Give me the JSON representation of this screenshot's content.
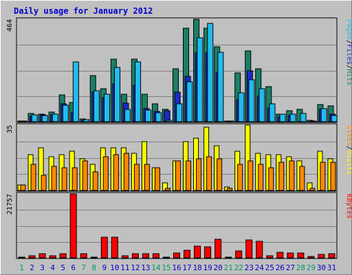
{
  "chart_data": {
    "type": "bar",
    "title": "Daily usage for January 2012",
    "categories": [
      "1",
      "2",
      "3",
      "4",
      "5",
      "6",
      "7",
      "8",
      "9",
      "10",
      "11",
      "12",
      "13",
      "14",
      "15",
      "16",
      "17",
      "18",
      "19",
      "20",
      "21",
      "22",
      "23",
      "24",
      "25",
      "26",
      "27",
      "28",
      "29",
      "30",
      "31"
    ],
    "weekend_days": [
      "1",
      "7",
      "8",
      "14",
      "15",
      "21",
      "22",
      "28",
      "29"
    ],
    "panels": [
      {
        "id": "hits-files-pages",
        "ymax_label": "464",
        "ymax": 464,
        "legend": [
          "Pages",
          "/",
          "Files",
          "/",
          "Hits"
        ],
        "series": [
          {
            "name": "Hits",
            "color": "#1a7f66",
            "values": [
              4,
              37,
              35,
              44,
              120,
              88,
              14,
              210,
              150,
              284,
              125,
              283,
              126,
              81,
              57,
              240,
              423,
              464,
              425,
              340,
              4,
              220,
              320,
              240,
              159,
              35,
              49,
              57,
              5,
              77,
              73
            ]
          },
          {
            "name": "Files",
            "color": "#1a2acc",
            "values": [
              3,
              25,
              30,
              30,
              80,
              40,
              5,
              135,
              110,
              170,
              84,
              165,
              59,
              47,
              49,
              135,
              206,
              310,
              310,
              220,
              2,
              100,
              230,
              115,
              62,
              22,
              27,
              0,
              0,
              55,
              33
            ]
          },
          {
            "name": "Pages",
            "color": "#22bbee",
            "values": [
              2,
              30,
              28,
              35,
              75,
              270,
              10,
              140,
              125,
              245,
              55,
              270,
              53,
              40,
              6,
              80,
              180,
              380,
              445,
              315,
              3,
              130,
              190,
              150,
              80,
              35,
              35,
              38,
              2,
              60,
              27
            ]
          }
        ]
      },
      {
        "id": "visits-sites",
        "ymax_label": "35",
        "ymax": 35,
        "legend": [
          "Sites",
          "/",
          "Visits"
        ],
        "series": [
          {
            "name": "Visits",
            "color": "#ffff00",
            "values": [
              3,
              19,
              23,
              18,
              19,
              21,
              17,
              14,
              23,
              23,
              23,
              20,
              26,
              12,
              4,
              16,
              26,
              28,
              34,
              24,
              2,
              21,
              35,
              20,
              19,
              19,
              18,
              16,
              4,
              21,
              17
            ]
          },
          {
            "name": "Sites",
            "color": "#ff8800",
            "values": [
              3,
              14,
              8,
              13,
              12,
              12,
              16,
              10,
              18,
              19,
              20,
              14,
              14,
              12,
              1,
              16,
              16,
              17,
              18,
              17,
              1,
              14,
              16,
              14,
              12,
              15,
              16,
              13,
              1,
              15,
              15
            ]
          }
        ]
      },
      {
        "id": "kbytes",
        "ymax_label": "21757",
        "ymax": 21757,
        "legend": [
          "KBytes"
        ],
        "series": [
          {
            "name": "KBytes",
            "color": "#ff0000",
            "values": [
              300,
              600,
              1300,
              700,
              1500,
              21757,
              1300,
              150,
              7000,
              7000,
              600,
              1500,
              1500,
              1500,
              200,
              1600,
              2500,
              4000,
              3800,
              6200,
              300,
              2300,
              6000,
              5700,
              800,
              1900,
              1700,
              1700,
              400,
              1100,
              1300
            ]
          }
        ]
      }
    ]
  },
  "colors": {
    "background": "#c0c0c0",
    "title": "#0000cc",
    "axis_label": "#000000",
    "weekend_label": "#009966",
    "weekday_label": "#0000cc",
    "gridline": "#808080",
    "bar_outline": "#000000"
  }
}
